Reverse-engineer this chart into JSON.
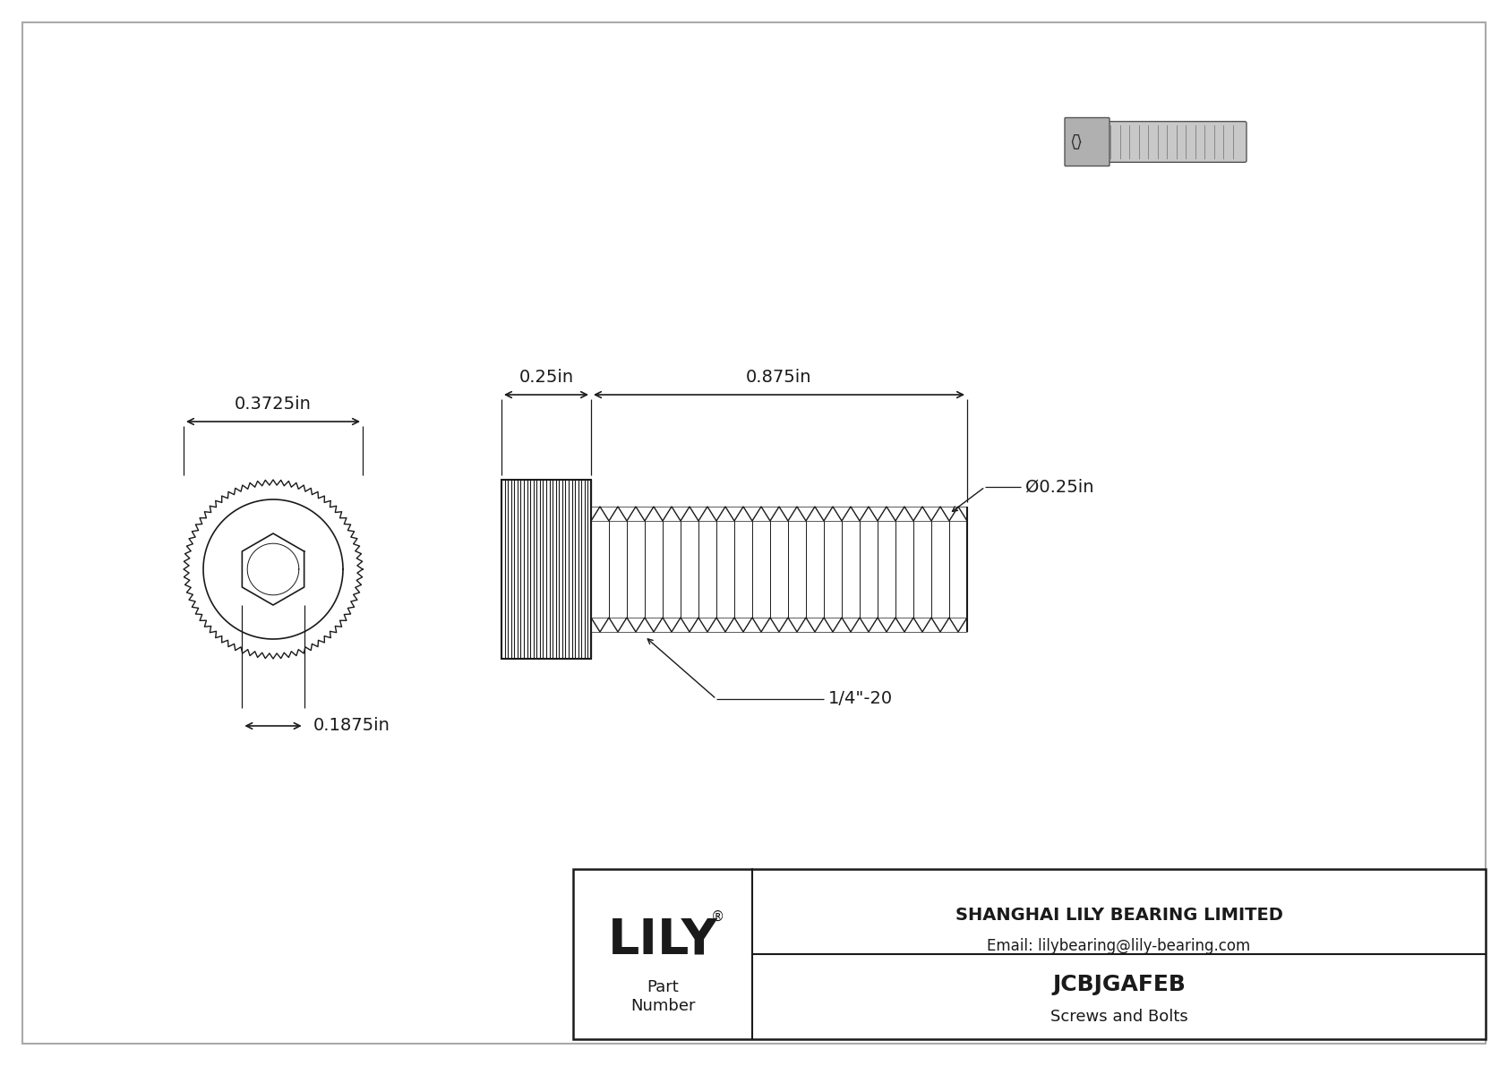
{
  "bg_color": "#ffffff",
  "line_color": "#1a1a1a",
  "border_color": "#888888",
  "title_company": "SHANGHAI LILY BEARING LIMITED",
  "title_email": "Email: lilybearing@lily-bearing.com",
  "part_number": "JCBJGAFEB",
  "part_category": "Screws and Bolts",
  "dim_head_diameter": "0.3725in",
  "dim_socket_diameter": "0.1875in",
  "dim_head_length": "0.25in",
  "dim_body_length": "0.875in",
  "dim_body_diameter": "Ø0.25in",
  "dim_thread": "1/4\"-20",
  "drawing_bg": "#ffffff"
}
